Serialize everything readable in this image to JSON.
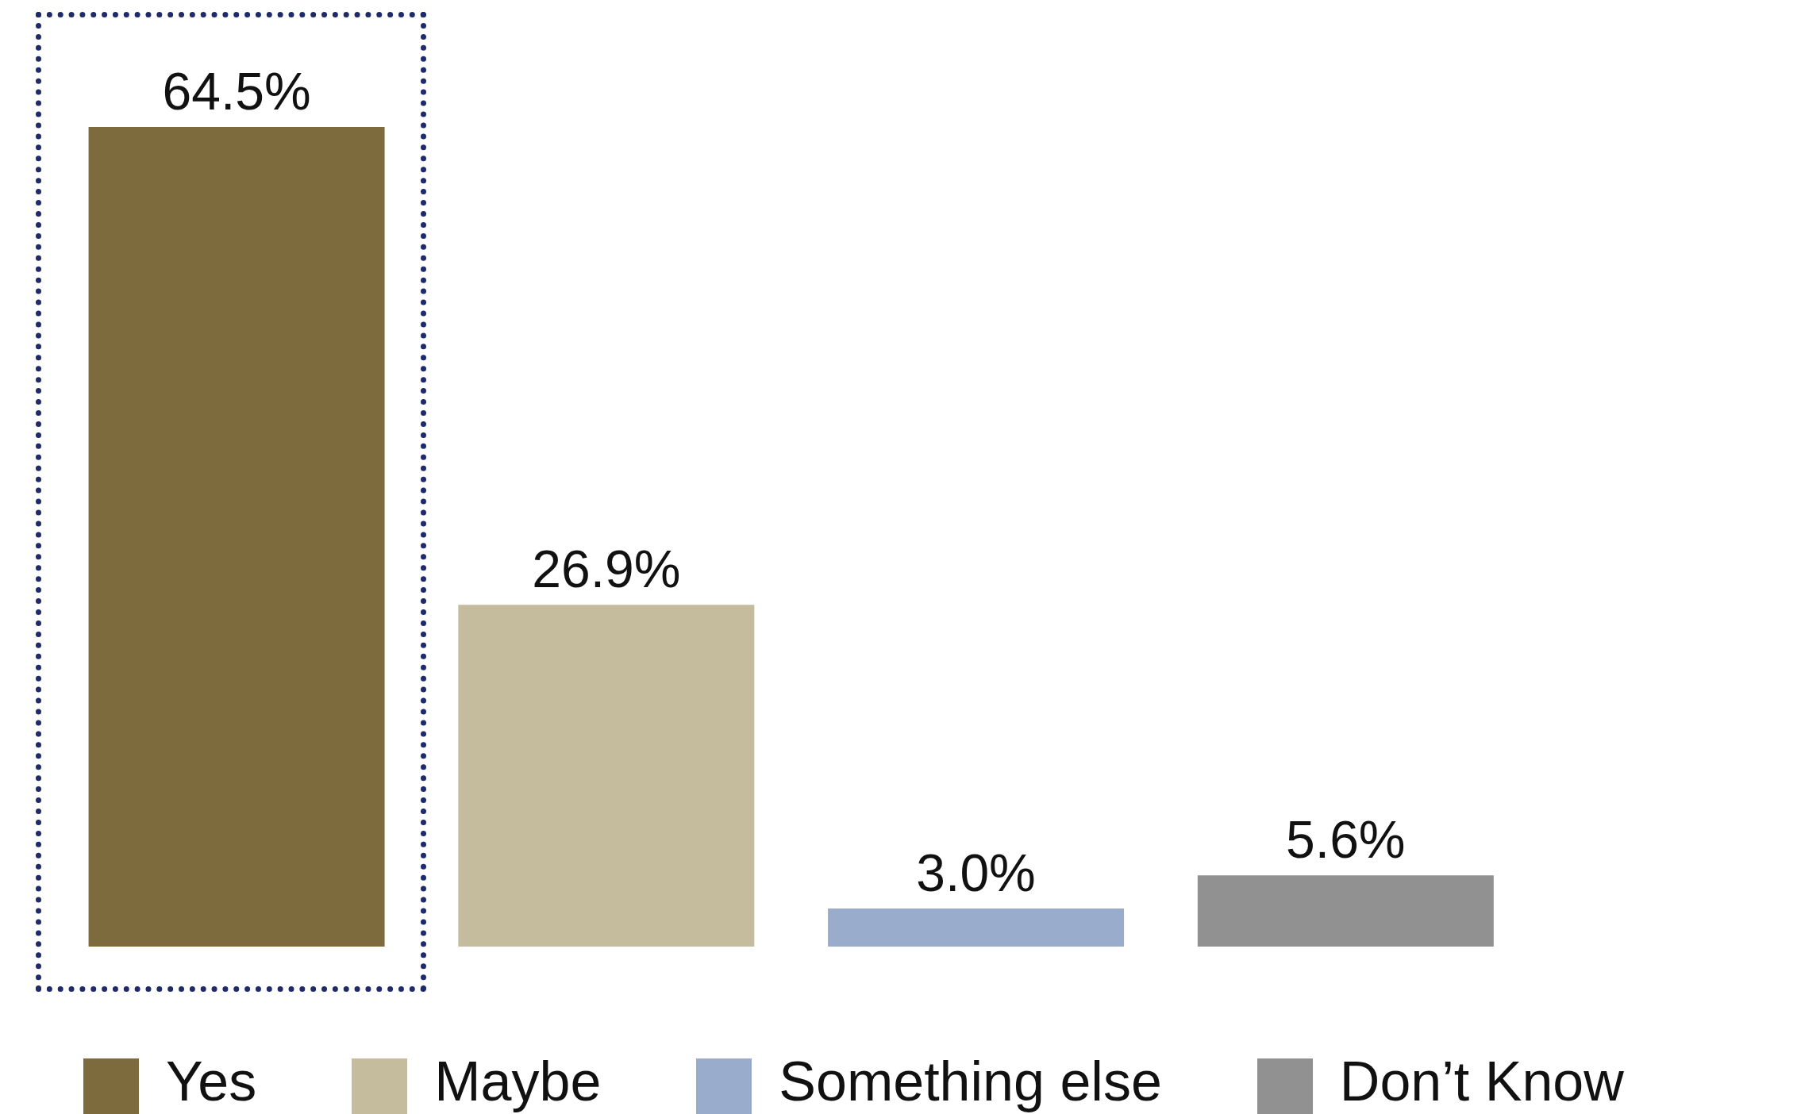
{
  "chart_data": {
    "type": "bar",
    "stacked": true,
    "categories": [
      null,
      null,
      null,
      null
    ],
    "series": [
      {
        "name": "Yes",
        "color": "#7e6b3d",
        "values": [
          64.5,
          null,
          null,
          null
        ],
        "value_labels": [
          "64.5%",
          null,
          null,
          null
        ]
      },
      {
        "name": "Maybe",
        "color": "#c5bc9e",
        "values": [
          null,
          26.9,
          null,
          null
        ],
        "value_labels": [
          null,
          "26.9%",
          null,
          null
        ]
      },
      {
        "name": "Something else",
        "color": "#9aaccc",
        "values": [
          null,
          null,
          3.0,
          null
        ],
        "value_labels": [
          null,
          null,
          "3.0%",
          null
        ]
      },
      {
        "name": "Don’t Know",
        "color": "#919191",
        "values": [
          null,
          null,
          null,
          5.6
        ],
        "value_labels": [
          null,
          null,
          null,
          "5.6%"
        ]
      }
    ],
    "legend": "bottom",
    "tick_labels": false
  }
}
